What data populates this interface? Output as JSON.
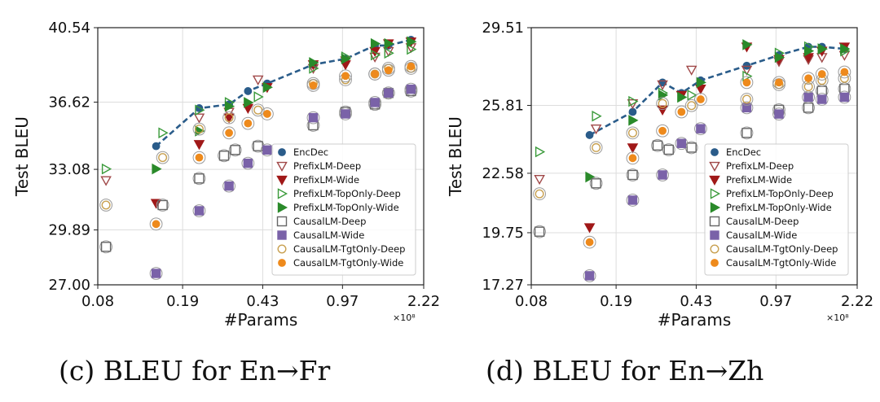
{
  "captions": {
    "c": "(c)  BLEU for En→Fr",
    "d": "(d)  BLEU for En→Zh"
  },
  "colors": {
    "encdec": "#2a5c8a",
    "deep_open": "#a04848",
    "wide_fill": "#a01818",
    "topdeep": "#3a9a3a",
    "topwide": "#2a8a2a",
    "causal_open": "#666666",
    "causal_wide": "#7a62a8",
    "tgt_open": "#c8a050",
    "tgt_fill": "#ee8a1c",
    "grid": "#dddddd"
  },
  "chart_data": [
    {
      "id": "c",
      "type": "scatter",
      "title": "",
      "xlabel": "#Params",
      "ylabel": "Test BLEU",
      "x_scale": "log",
      "x_exponent_label": "×10⁸",
      "xlim": [
        0.08,
        2.22
      ],
      "ylim": [
        27.0,
        40.54
      ],
      "xticks": [
        0.08,
        0.19,
        0.43,
        0.97,
        2.22
      ],
      "xtick_labels": [
        "0.08",
        "0.19",
        "0.43",
        "0.97",
        "2.22"
      ],
      "yticks": [
        27.0,
        29.89,
        33.08,
        36.62,
        40.54
      ],
      "ytick_labels": [
        "27.00",
        "29.89",
        "33.08",
        "36.62",
        "40.54"
      ],
      "grid": true,
      "legend_position": "lower-right",
      "series": [
        {
          "name": "EncDec",
          "marker": "circle",
          "filled": true,
          "color": "encdec",
          "line": "dashed",
          "x": [
            0.145,
            0.225,
            0.305,
            0.37,
            0.45,
            0.72,
            1.0,
            1.35,
            1.55,
            1.95
          ],
          "y": [
            34.3,
            36.3,
            36.5,
            37.2,
            37.6,
            38.6,
            38.9,
            39.6,
            39.6,
            39.9
          ]
        },
        {
          "name": "PrefixLM-Deep",
          "marker": "tri_down",
          "filled": false,
          "color": "deep_open",
          "x": [
            0.087,
            0.225,
            0.305,
            0.41,
            0.72,
            1.0,
            1.35,
            1.55,
            1.95
          ],
          "y": [
            32.5,
            35.8,
            36.1,
            37.8,
            38.4,
            38.8,
            39.0,
            39.3,
            39.5
          ]
        },
        {
          "name": "PrefixLM-Wide",
          "marker": "tri_down",
          "filled": true,
          "color": "wide_fill",
          "x": [
            0.145,
            0.225,
            0.305,
            0.37,
            0.45,
            0.72,
            1.0,
            1.35,
            1.55,
            1.95
          ],
          "y": [
            31.3,
            34.4,
            35.8,
            36.3,
            37.4,
            38.6,
            38.6,
            39.3,
            39.7,
            39.8
          ]
        },
        {
          "name": "PrefixLM-TopOnly-Deep",
          "marker": "tri_right",
          "filled": false,
          "color": "topdeep",
          "x": [
            0.087,
            0.155,
            0.225,
            0.305,
            0.41,
            0.72,
            1.0,
            1.35,
            1.55,
            1.95
          ],
          "y": [
            33.1,
            35.0,
            36.2,
            36.6,
            36.9,
            38.4,
            39.0,
            39.1,
            39.2,
            39.4
          ]
        },
        {
          "name": "PrefixLM-TopOnly-Wide",
          "marker": "tri_right",
          "filled": true,
          "color": "topwide",
          "x": [
            0.145,
            0.225,
            0.305,
            0.37,
            0.45,
            0.72,
            1.0,
            1.35,
            1.55,
            1.95
          ],
          "y": [
            33.1,
            35.1,
            36.4,
            36.6,
            37.4,
            38.7,
            38.9,
            39.7,
            39.7,
            39.8
          ]
        },
        {
          "name": "CausalLM-Deep",
          "marker": "square",
          "filled": false,
          "color": "causal_open",
          "x": [
            0.087,
            0.155,
            0.225,
            0.29,
            0.325,
            0.41,
            0.72,
            1.0,
            1.35,
            1.55,
            1.95
          ],
          "y": [
            29.0,
            31.2,
            32.6,
            33.8,
            34.1,
            34.3,
            35.4,
            36.1,
            36.5,
            37.1,
            37.2
          ]
        },
        {
          "name": "CausalLM-Wide",
          "marker": "square",
          "filled": true,
          "color": "causal_wide",
          "x": [
            0.145,
            0.225,
            0.305,
            0.37,
            0.45,
            0.72,
            1.0,
            1.35,
            1.55,
            1.95
          ],
          "y": [
            27.6,
            30.9,
            32.2,
            33.4,
            34.1,
            35.8,
            36.0,
            36.6,
            37.1,
            37.3
          ]
        },
        {
          "name": "CausalLM-TgtOnly-Deep",
          "marker": "circle",
          "filled": false,
          "color": "tgt_open",
          "x": [
            0.087,
            0.155,
            0.225,
            0.305,
            0.41,
            0.72,
            1.0,
            1.35,
            1.55,
            1.95
          ],
          "y": [
            31.2,
            33.7,
            35.2,
            35.8,
            36.2,
            37.6,
            37.8,
            38.1,
            38.4,
            38.4
          ]
        },
        {
          "name": "CausalLM-TgtOnly-Wide",
          "marker": "circle",
          "filled": true,
          "color": "tgt_fill",
          "x": [
            0.145,
            0.225,
            0.305,
            0.37,
            0.45,
            0.72,
            1.0,
            1.35,
            1.55,
            1.95
          ],
          "y": [
            30.2,
            33.7,
            35.0,
            35.5,
            36.0,
            37.5,
            38.0,
            38.1,
            38.3,
            38.5
          ]
        }
      ]
    },
    {
      "id": "d",
      "type": "scatter",
      "title": "",
      "xlabel": "#Params",
      "ylabel": "Test BLEU",
      "x_scale": "log",
      "x_exponent_label": "×10⁸",
      "xlim": [
        0.08,
        2.22
      ],
      "ylim": [
        17.27,
        29.51
      ],
      "xticks": [
        0.08,
        0.19,
        0.43,
        0.97,
        2.22
      ],
      "xtick_labels": [
        "0.08",
        "0.19",
        "0.43",
        "0.97",
        "2.22"
      ],
      "yticks": [
        17.27,
        19.75,
        22.58,
        25.81,
        29.51
      ],
      "ytick_labels": [
        "17.27",
        "19.75",
        "22.58",
        "25.81",
        "29.51"
      ],
      "grid": true,
      "legend_position": "lower-right",
      "series": [
        {
          "name": "EncDec",
          "marker": "circle",
          "filled": true,
          "color": "encdec",
          "line": "dashed",
          "x": [
            0.145,
            0.225,
            0.305,
            0.37,
            0.45,
            0.72,
            1.0,
            1.35,
            1.55,
            1.95
          ],
          "y": [
            24.4,
            25.5,
            26.9,
            26.4,
            27.0,
            27.7,
            28.2,
            28.6,
            28.6,
            28.5
          ]
        },
        {
          "name": "PrefixLM-Deep",
          "marker": "tri_down",
          "filled": false,
          "color": "deep_open",
          "x": [
            0.087,
            0.155,
            0.225,
            0.305,
            0.41,
            0.72,
            1.0,
            1.35,
            1.55,
            1.95
          ],
          "y": [
            22.3,
            24.7,
            25.9,
            26.8,
            27.5,
            27.5,
            27.9,
            28.0,
            28.1,
            28.2
          ]
        },
        {
          "name": "PrefixLM-Wide",
          "marker": "tri_down",
          "filled": true,
          "color": "wide_fill",
          "x": [
            0.145,
            0.225,
            0.305,
            0.37,
            0.45,
            0.72,
            1.0,
            1.35,
            1.55,
            1.95
          ],
          "y": [
            20.0,
            23.8,
            25.6,
            26.3,
            26.6,
            28.6,
            28.0,
            28.1,
            28.4,
            28.6
          ]
        },
        {
          "name": "PrefixLM-TopOnly-Deep",
          "marker": "tri_right",
          "filled": false,
          "color": "topdeep",
          "x": [
            0.087,
            0.155,
            0.225,
            0.305,
            0.41,
            0.72,
            1.0,
            1.35,
            1.55,
            1.95
          ],
          "y": [
            23.6,
            25.3,
            26.0,
            26.4,
            26.3,
            27.2,
            28.3,
            28.6,
            28.5,
            28.4
          ]
        },
        {
          "name": "PrefixLM-TopOnly-Wide",
          "marker": "tri_right",
          "filled": true,
          "color": "topwide",
          "x": [
            0.145,
            0.225,
            0.305,
            0.37,
            0.45,
            0.72,
            1.0,
            1.35,
            1.55,
            1.95
          ],
          "y": [
            22.4,
            25.1,
            26.3,
            26.2,
            26.9,
            28.7,
            28.1,
            28.4,
            28.5,
            28.5
          ]
        },
        {
          "name": "CausalLM-Deep",
          "marker": "square",
          "filled": false,
          "color": "causal_open",
          "x": [
            0.087,
            0.155,
            0.225,
            0.29,
            0.325,
            0.41,
            0.72,
            1.0,
            1.35,
            1.55,
            1.95
          ],
          "y": [
            19.8,
            22.1,
            22.5,
            23.9,
            23.7,
            23.8,
            24.5,
            25.6,
            25.7,
            26.5,
            26.6
          ]
        },
        {
          "name": "CausalLM-Wide",
          "marker": "square",
          "filled": true,
          "color": "causal_wide",
          "x": [
            0.145,
            0.225,
            0.305,
            0.37,
            0.45,
            0.72,
            1.0,
            1.35,
            1.55,
            1.95
          ],
          "y": [
            17.7,
            21.3,
            22.5,
            24.0,
            24.7,
            25.7,
            25.4,
            26.2,
            26.1,
            26.2
          ]
        },
        {
          "name": "CausalLM-TgtOnly-Deep",
          "marker": "circle",
          "filled": false,
          "color": "tgt_open",
          "x": [
            0.087,
            0.155,
            0.225,
            0.305,
            0.41,
            0.72,
            1.0,
            1.35,
            1.55,
            1.95
          ],
          "y": [
            21.6,
            23.8,
            24.5,
            25.9,
            25.8,
            26.1,
            26.8,
            26.7,
            27.0,
            27.1
          ]
        },
        {
          "name": "CausalLM-TgtOnly-Wide",
          "marker": "circle",
          "filled": true,
          "color": "tgt_fill",
          "x": [
            0.145,
            0.225,
            0.305,
            0.37,
            0.45,
            0.72,
            1.0,
            1.35,
            1.55,
            1.95
          ],
          "y": [
            19.3,
            23.3,
            24.6,
            25.5,
            26.1,
            26.9,
            26.9,
            27.1,
            27.3,
            27.4
          ]
        }
      ]
    }
  ]
}
